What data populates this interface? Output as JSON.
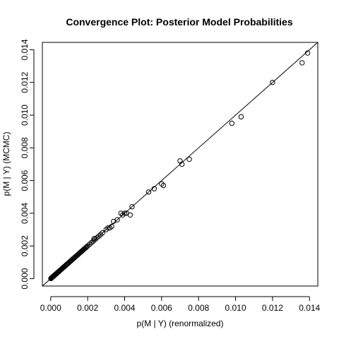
{
  "chart_data": {
    "type": "scatter",
    "title": "Convergence Plot: Posterior Model Probabilities",
    "xlabel": "p(M | Y) (renormalized)",
    "ylabel": "p(M | Y) (MCMC)",
    "xlim": [
      -0.00045,
      0.01445
    ],
    "ylim": [
      -0.00045,
      0.01445
    ],
    "x_ticks": [
      0,
      0.002,
      0.004,
      0.006,
      0.008,
      0.01,
      0.012,
      0.014
    ],
    "x_tick_labels": [
      "0.000",
      "0.002",
      "0.004",
      "0.006",
      "0.008",
      "0.010",
      "0.012",
      "0.014"
    ],
    "y_ticks": [
      0,
      0.002,
      0.004,
      0.006,
      0.008,
      0.01,
      0.012,
      0.014
    ],
    "y_tick_labels": [
      "0.000",
      "0.002",
      "0.004",
      "0.006",
      "0.008",
      "0.010",
      "0.012",
      "0.014"
    ],
    "grid": false,
    "reference_line": {
      "type": "identity",
      "intercept": 0,
      "slope": 1
    },
    "x": [
      1e-05,
      2e-05,
      3e-05,
      4e-05,
      5e-05,
      6e-05,
      8e-05,
      0.0001,
      0.00012,
      0.00014,
      0.00016,
      0.00018,
      0.0002,
      0.00022,
      0.00025,
      0.00028,
      0.0003,
      0.00033,
      0.00036,
      0.0004,
      0.00043,
      0.00046,
      0.0005,
      0.00054,
      0.00058,
      0.00062,
      0.00066,
      0.0007,
      0.00074,
      0.00078,
      0.00082,
      0.00086,
      0.0009,
      0.00095,
      0.001,
      0.00105,
      0.0011,
      0.00115,
      0.0012,
      0.00125,
      0.0013,
      0.00135,
      0.0014,
      0.00145,
      0.0015,
      0.00155,
      0.0016,
      0.00165,
      0.0017,
      0.00175,
      0.0018,
      0.00185,
      0.0019,
      0.00195,
      0.002,
      0.0021,
      0.0022,
      0.0023,
      0.00235,
      0.0024,
      0.0025,
      0.0026,
      0.0027,
      0.0028,
      0.003,
      0.0031,
      0.0032,
      0.0033,
      0.0034,
      0.0036,
      0.0038,
      0.0039,
      0.004,
      0.0041,
      0.0043,
      0.0044,
      0.0053,
      0.0056,
      0.006,
      0.0061,
      0.007,
      0.0071,
      0.0075,
      0.0098,
      0.0103,
      0.012,
      0.0136,
      0.0139
    ],
    "y": [
      1e-05,
      2e-05,
      3e-05,
      4e-05,
      5e-05,
      6e-05,
      8e-05,
      0.0001,
      0.00012,
      0.00014,
      0.00016,
      0.00018,
      0.0002,
      0.00022,
      0.00025,
      0.00028,
      0.0003,
      0.00033,
      0.00036,
      0.0004,
      0.00043,
      0.00046,
      0.0005,
      0.00054,
      0.00058,
      0.00062,
      0.00066,
      0.0007,
      0.00074,
      0.00078,
      0.00082,
      0.00086,
      0.0009,
      0.00095,
      0.001,
      0.00105,
      0.0011,
      0.00115,
      0.0012,
      0.00125,
      0.0013,
      0.00135,
      0.0014,
      0.00145,
      0.0015,
      0.00155,
      0.0016,
      0.00165,
      0.0017,
      0.00175,
      0.0018,
      0.00185,
      0.0019,
      0.00195,
      0.002,
      0.0021,
      0.0022,
      0.0023,
      0.00245,
      0.0024,
      0.0025,
      0.0026,
      0.0027,
      0.0028,
      0.003,
      0.0031,
      0.0031,
      0.0032,
      0.0035,
      0.0036,
      0.004,
      0.0039,
      0.004,
      0.004,
      0.0039,
      0.0044,
      0.0053,
      0.0055,
      0.0058,
      0.0057,
      0.0072,
      0.007,
      0.0073,
      0.0095,
      0.0099,
      0.012,
      0.0132,
      0.0138
    ],
    "colors": {
      "points": "#000000",
      "line": "#000000",
      "axes": "#000000",
      "background": "#ffffff"
    }
  }
}
